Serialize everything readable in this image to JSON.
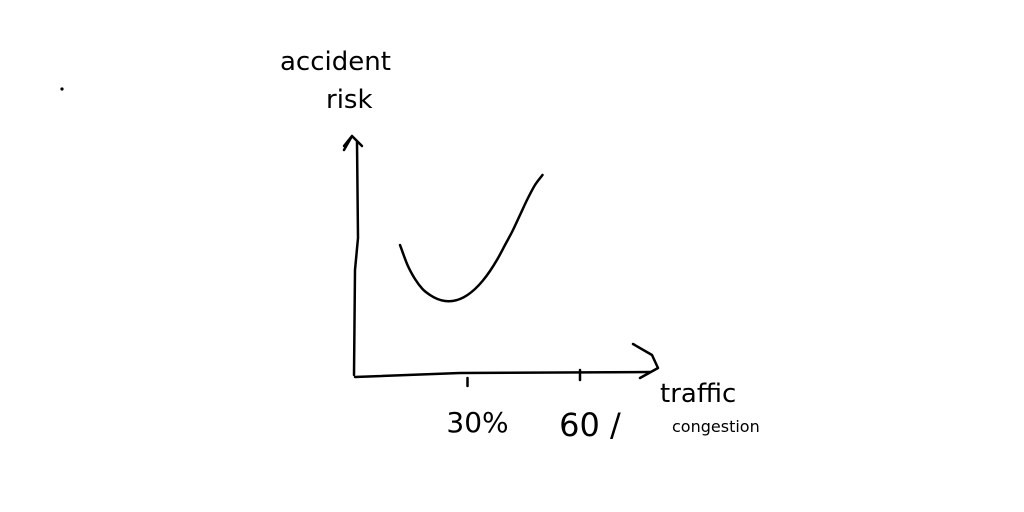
{
  "chart_data": {
    "type": "line",
    "title": "",
    "xlabel": "traffic congestion",
    "xlabel_lines": [
      "traffic",
      "congestion"
    ],
    "ylabel": "accident risk",
    "ylabel_lines": [
      "accident",
      "risk"
    ],
    "x_ticks": [
      {
        "value": 30,
        "label": "30%"
      },
      {
        "value": 60,
        "label": "60 /"
      }
    ],
    "xlim": [
      0,
      80
    ],
    "ylim": [
      0,
      10
    ],
    "grid": false,
    "legend": "none",
    "series": [
      {
        "x": [
          12,
          14,
          16,
          18,
          20,
          22,
          24,
          26,
          28,
          30,
          32,
          34,
          36,
          38,
          40,
          42,
          44,
          46,
          48,
          50
        ],
        "y": [
          6.5,
          5.5,
          4.8,
          4.3,
          4.0,
          3.8,
          3.7,
          3.7,
          3.8,
          4.0,
          4.3,
          4.7,
          5.2,
          5.8,
          6.5,
          7.2,
          8.0,
          8.8,
          9.5,
          10.0
        ]
      }
    ],
    "colors": {
      "stroke": "#000000",
      "background": "#ffffff"
    }
  }
}
